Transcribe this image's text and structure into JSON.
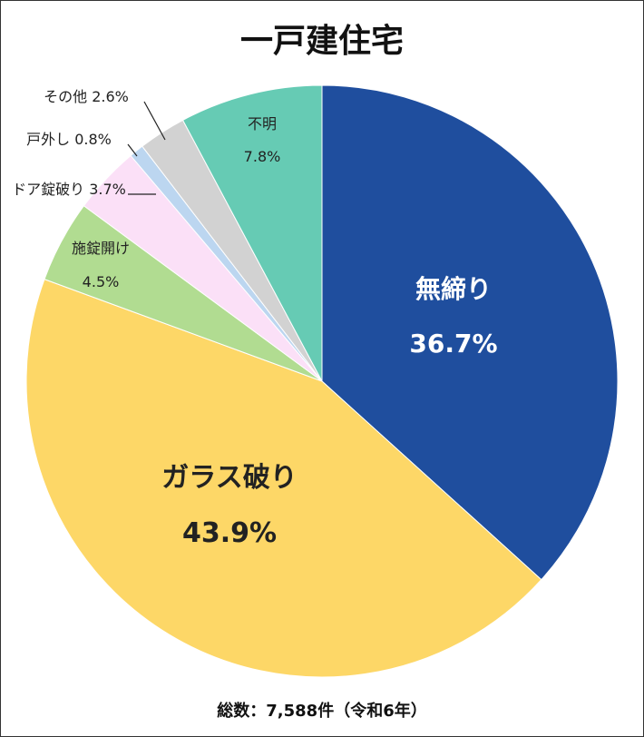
{
  "chart_data": {
    "type": "pie",
    "title": "一戸建住宅",
    "footnote": "総数：7,588件（令和6年）",
    "slices": [
      {
        "label": "無締り",
        "value_label": "36.7%",
        "value": 36.7,
        "color": "#1f4e9e",
        "text_color": "#ffffff"
      },
      {
        "label": "ガラス破り",
        "value_label": "43.9%",
        "value": 43.9,
        "color": "#fdd767",
        "text_color": "#222222"
      },
      {
        "label": "施錠開け",
        "value_label": "4.5%",
        "value": 4.5,
        "color": "#b1dc91",
        "text_color": "#222222"
      },
      {
        "label": "ドア錠破り",
        "value_label": "3.7%",
        "value": 3.7,
        "color": "#fbe0f7",
        "text_color": "#222222"
      },
      {
        "label": "戸外し",
        "value_label": "0.8%",
        "value": 0.8,
        "color": "#bcd6f0",
        "text_color": "#222222"
      },
      {
        "label": "その他",
        "value_label": "2.6%",
        "value": 2.6,
        "color": "#d2d2d2",
        "text_color": "#222222"
      },
      {
        "label": "不明",
        "value_label": "7.8%",
        "value": 7.8,
        "color": "#66cbb4",
        "text_color": "#222222"
      }
    ],
    "start_angle_deg": 0,
    "direction": "clockwise"
  }
}
